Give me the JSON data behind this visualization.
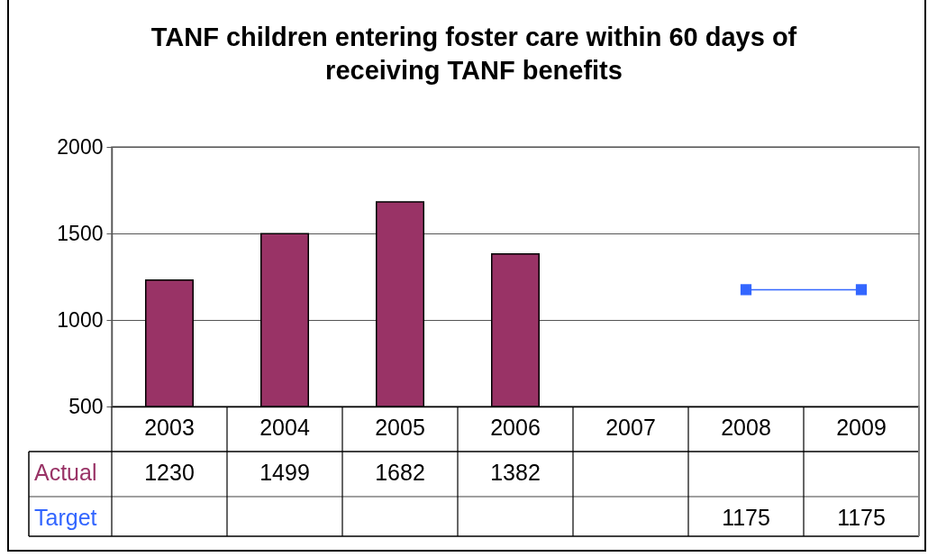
{
  "chart_data": {
    "type": "bar",
    "title": "TANF children entering foster care within 60 days of receiving TANF benefits",
    "categories": [
      "2003",
      "2004",
      "2005",
      "2006",
      "2007",
      "2008",
      "2009"
    ],
    "series": [
      {
        "name": "Actual",
        "color": "#993366",
        "values": [
          1230,
          1499,
          1682,
          1382,
          null,
          null,
          null
        ]
      },
      {
        "name": "Target",
        "type": "line",
        "color": "#3366ff",
        "values": [
          null,
          null,
          null,
          null,
          null,
          1175,
          1175
        ]
      }
    ],
    "ylim": [
      500,
      2000
    ],
    "yticks": [
      500,
      1000,
      1500,
      2000
    ],
    "grid": "y",
    "legend": false,
    "marker": "square",
    "line_style": "solid",
    "data_labels": true
  }
}
